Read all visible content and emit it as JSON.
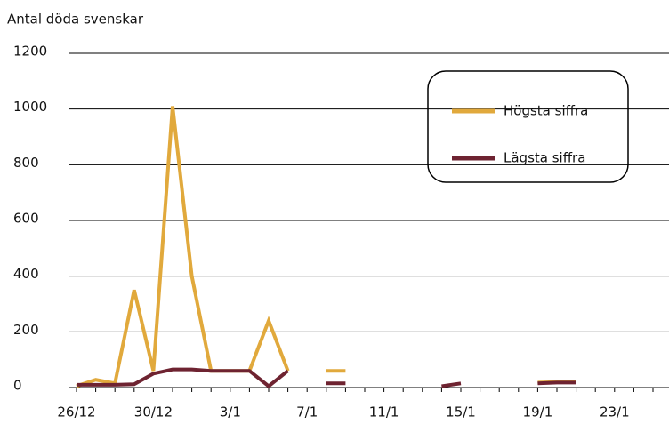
{
  "chart_data": {
    "type": "line",
    "ylabel": "Antal döda svenskar",
    "categories": [
      "26/12",
      null,
      null,
      null,
      "30/12",
      null,
      null,
      null,
      "3/1",
      null,
      null,
      null,
      "7/1",
      null,
      null,
      null,
      "11/1",
      null,
      null,
      null,
      "15/1",
      null,
      null,
      null,
      "19/1",
      null,
      null,
      null,
      "23/1",
      null,
      null
    ],
    "series": [
      {
        "name": "Högsta siffra",
        "color": "#e1a93c",
        "values": [
          5,
          28,
          15,
          350,
          60,
          1010,
          400,
          60,
          60,
          60,
          240,
          60,
          null,
          60,
          60,
          null,
          null,
          null,
          null,
          null,
          null,
          null,
          null,
          null,
          18,
          20,
          22,
          null,
          null,
          null,
          null
        ]
      },
      {
        "name": "Lägsta siffra",
        "color": "#6e2331",
        "values": [
          10,
          10,
          10,
          12,
          50,
          65,
          65,
          60,
          60,
          60,
          5,
          60,
          null,
          15,
          15,
          null,
          null,
          null,
          null,
          5,
          15,
          null,
          null,
          null,
          15,
          18,
          18,
          null,
          null,
          null,
          null
        ]
      }
    ],
    "ylim": [
      0,
      1200
    ],
    "yticks": [
      0,
      200,
      400,
      600,
      800,
      1000,
      1200
    ],
    "grid": true,
    "legend": "upper right"
  }
}
